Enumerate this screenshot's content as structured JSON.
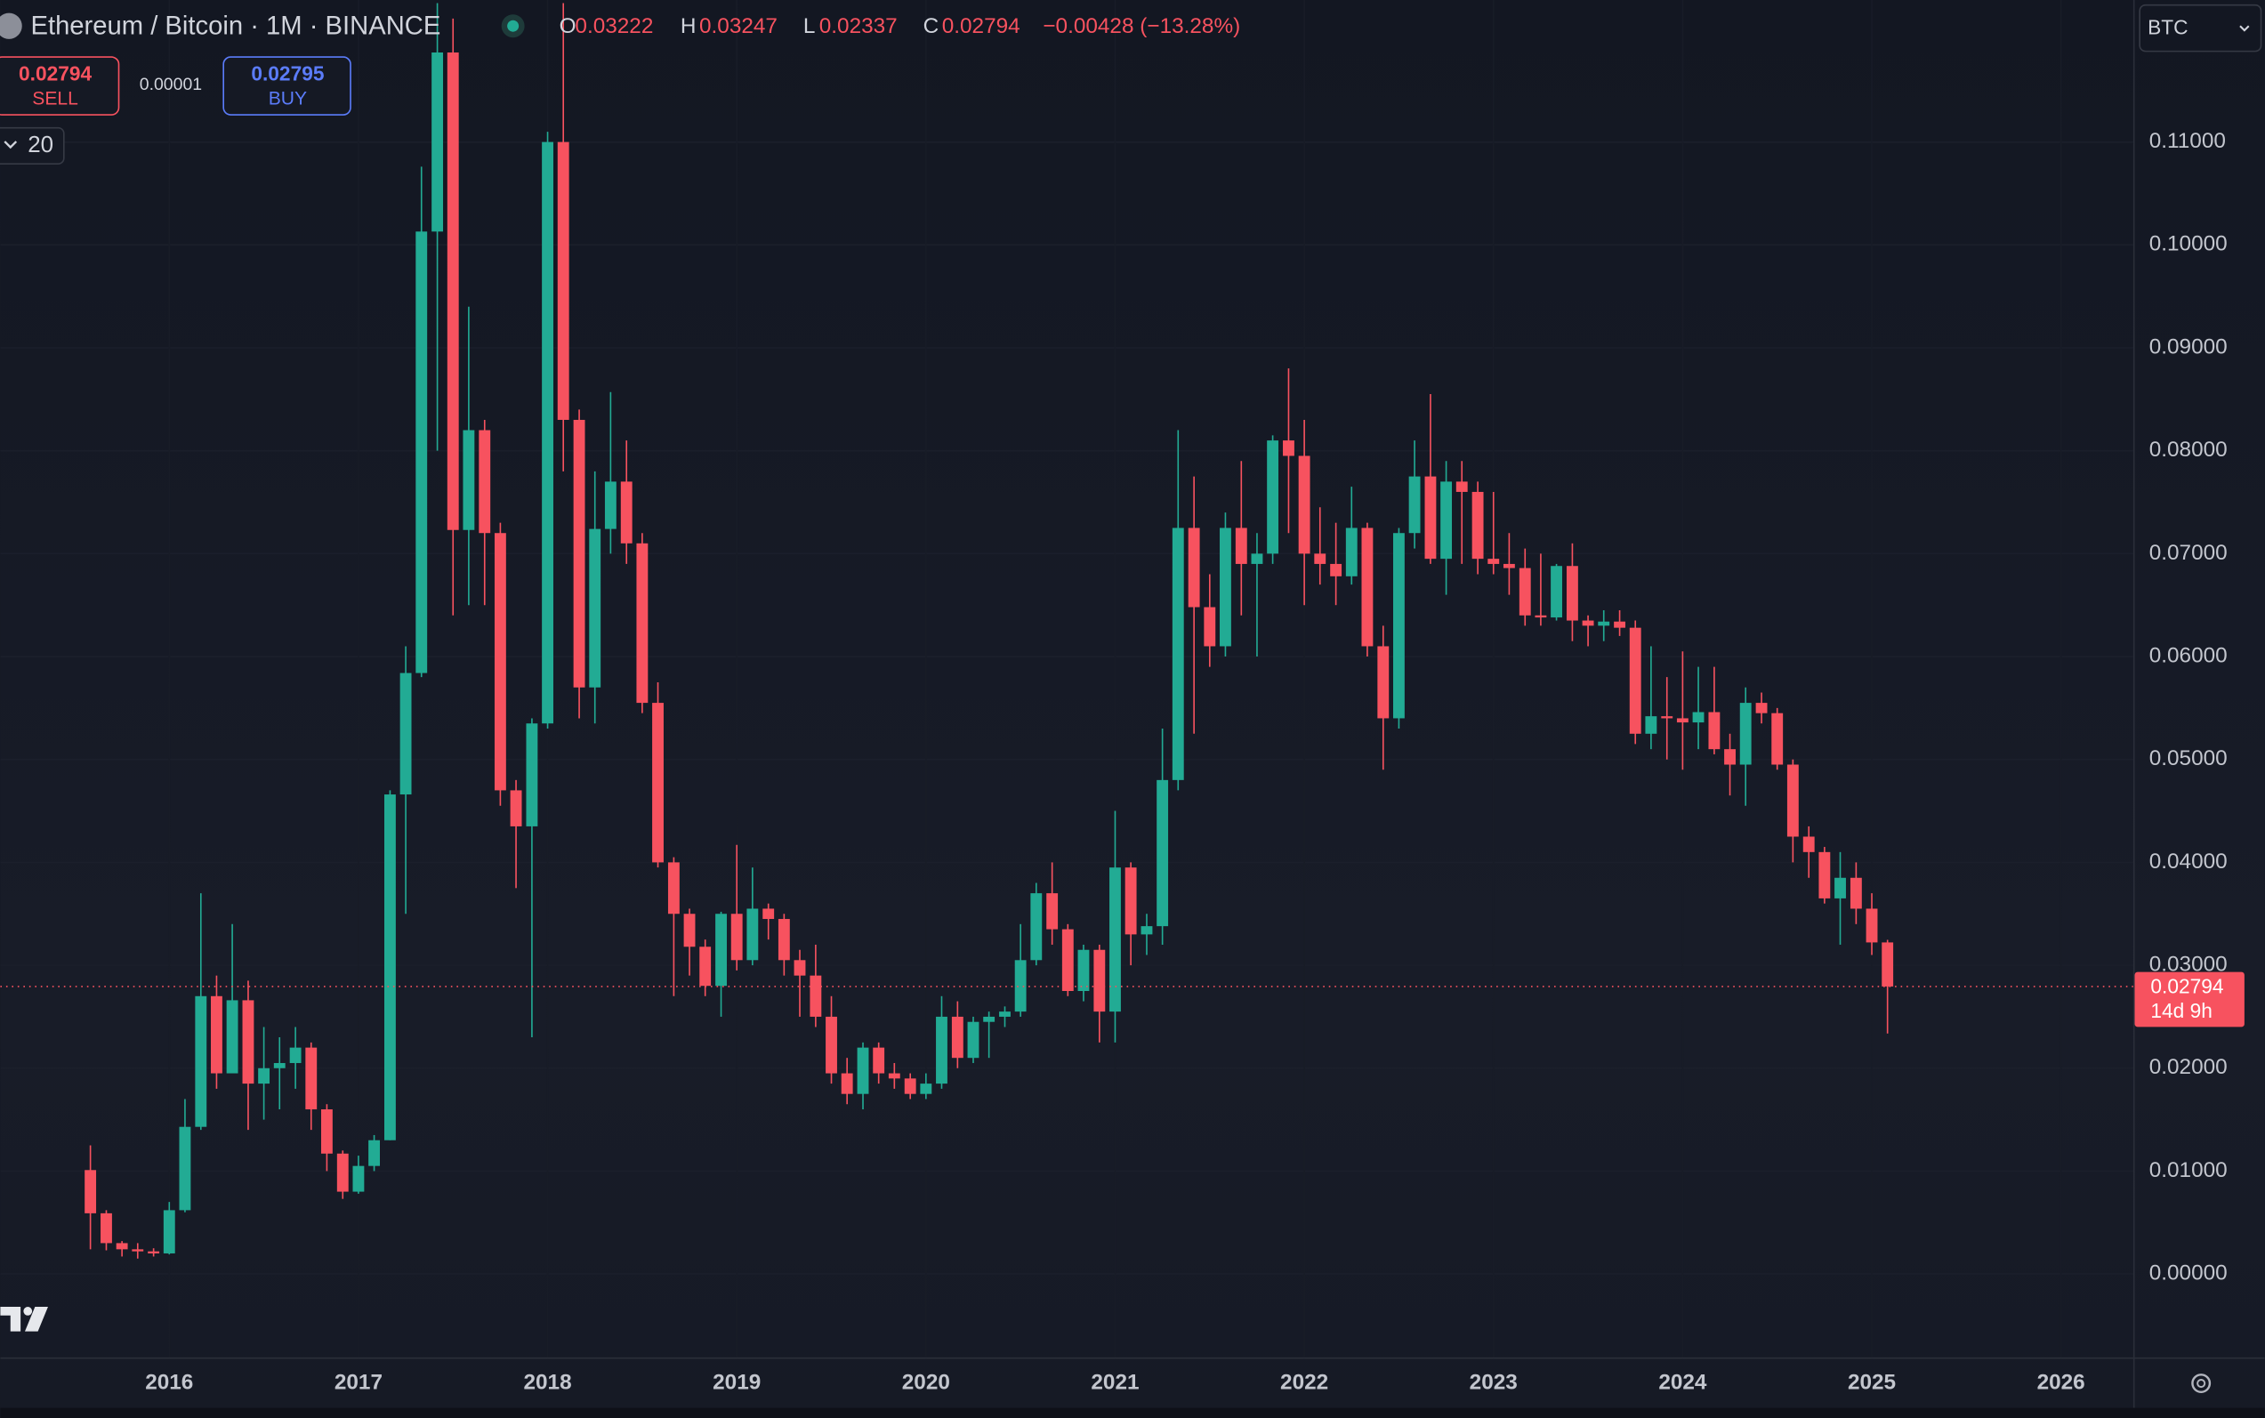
{
  "header": {
    "symbol": "Ethereum / Bitcoin · 1M · BINANCE",
    "ohlc": [
      {
        "label": "O",
        "value": 0.03222
      },
      {
        "label": "H",
        "value": 0.03247
      },
      {
        "label": "L",
        "value": 0.02337
      },
      {
        "label": "C",
        "value": 0.02794
      }
    ],
    "change": "−0.00428 (−13.28%)"
  },
  "trade": {
    "sell_price": 0.02794,
    "sell_label": "SELL",
    "spread": 1e-05,
    "buy_price": 0.02795,
    "buy_label": "BUY"
  },
  "indicators_count": 20,
  "currency": "BTC",
  "price_badge": {
    "price": 0.02794,
    "countdown": "14d 9h"
  },
  "chart_data": {
    "type": "candlestick",
    "up_color": "#22ab94",
    "down_color": "#f7525f",
    "grid": true,
    "xlim": [
      2015.107,
      2026.382
    ],
    "ylim": [
      -0.0081,
      0.1238
    ],
    "xticks": [
      2016,
      2017,
      2018,
      2019,
      2020,
      2021,
      2022,
      2023,
      2024,
      2025,
      2026
    ],
    "yticks": [
      {
        "value": 0,
        "label": "0.00000"
      },
      {
        "value": 0.01,
        "label": "0.01000"
      },
      {
        "value": 0.02,
        "label": "0.02000"
      },
      {
        "value": 0.03,
        "label": "0.03000"
      },
      {
        "value": 0.04,
        "label": "0.04000"
      },
      {
        "value": 0.05,
        "label": "0.05000"
      },
      {
        "value": 0.06,
        "label": "0.06000"
      },
      {
        "value": 0.07,
        "label": "0.07000"
      },
      {
        "value": 0.08,
        "label": "0.08000"
      },
      {
        "value": 0.09,
        "label": "0.09000"
      },
      {
        "value": 0.1,
        "label": "0.10000"
      },
      {
        "value": 0.11,
        "label": "0.11000"
      }
    ],
    "x": [
      2015.583,
      2015.667,
      2015.75,
      2015.833,
      2015.917,
      2016,
      2016.083,
      2016.167,
      2016.25,
      2016.333,
      2016.417,
      2016.5,
      2016.583,
      2016.667,
      2016.75,
      2016.833,
      2016.917,
      2017,
      2017.083,
      2017.167,
      2017.25,
      2017.333,
      2017.417,
      2017.5,
      2017.583,
      2017.667,
      2017.75,
      2017.833,
      2017.917,
      2018,
      2018.083,
      2018.167,
      2018.25,
      2018.333,
      2018.417,
      2018.5,
      2018.583,
      2018.667,
      2018.75,
      2018.833,
      2018.917,
      2019,
      2019.083,
      2019.167,
      2019.25,
      2019.333,
      2019.417,
      2019.5,
      2019.583,
      2019.667,
      2019.75,
      2019.833,
      2019.917,
      2020,
      2020.083,
      2020.167,
      2020.25,
      2020.333,
      2020.417,
      2020.5,
      2020.583,
      2020.667,
      2020.75,
      2020.833,
      2020.917,
      2021,
      2021.083,
      2021.167,
      2021.25,
      2021.333,
      2021.417,
      2021.5,
      2021.583,
      2021.667,
      2021.75,
      2021.833,
      2021.917,
      2022,
      2022.083,
      2022.167,
      2022.25,
      2022.333,
      2022.417,
      2022.5,
      2022.583,
      2022.667,
      2022.75,
      2022.833,
      2022.917,
      2023,
      2023.083,
      2023.167,
      2023.25,
      2023.333,
      2023.417,
      2023.5,
      2023.583,
      2023.667,
      2023.75,
      2023.833,
      2023.917,
      2024,
      2024.083,
      2024.167,
      2024.25,
      2024.333,
      2024.417,
      2024.5,
      2024.583,
      2024.667,
      2024.75,
      2024.833,
      2024.917,
      2025,
      2025.083
    ],
    "open": [
      0.0101,
      0.0059,
      0.003,
      0.0024,
      0.0022,
      0.002,
      0.0062,
      0.0143,
      0.027,
      0.0195,
      0.0266,
      0.0185,
      0.02,
      0.0205,
      0.022,
      0.016,
      0.0117,
      0.008,
      0.0105,
      0.013,
      0.0466,
      0.0584,
      0.1013,
      0.1187,
      0.0723,
      0.082,
      0.072,
      0.047,
      0.0435,
      0.0535,
      0.11,
      0.083,
      0.057,
      0.0724,
      0.077,
      0.071,
      0.0555,
      0.04,
      0.035,
      0.0318,
      0.028,
      0.035,
      0.0305,
      0.0355,
      0.0345,
      0.0305,
      0.029,
      0.025,
      0.0195,
      0.0175,
      0.022,
      0.0195,
      0.019,
      0.0175,
      0.0185,
      0.025,
      0.021,
      0.0245,
      0.025,
      0.0255,
      0.0305,
      0.037,
      0.0335,
      0.0275,
      0.0315,
      0.0255,
      0.0395,
      0.033,
      0.0338,
      0.048,
      0.0725,
      0.0648,
      0.061,
      0.0725,
      0.069,
      0.07,
      0.081,
      0.0795,
      0.07,
      0.069,
      0.0678,
      0.0725,
      0.061,
      0.054,
      0.072,
      0.0775,
      0.0695,
      0.077,
      0.076,
      0.0695,
      0.069,
      0.0686,
      0.064,
      0.0638,
      0.0688,
      0.0635,
      0.063,
      0.0634,
      0.0628,
      0.0525,
      0.0542,
      0.054,
      0.0536,
      0.0546,
      0.051,
      0.0495,
      0.0555,
      0.0545,
      0.0495,
      0.0425,
      0.041,
      0.0365,
      0.0385,
      0.0355,
      0.03222
    ],
    "high": [
      0.0125,
      0.0062,
      0.0032,
      0.003,
      0.0025,
      0.007,
      0.017,
      0.037,
      0.029,
      0.034,
      0.0285,
      0.024,
      0.023,
      0.024,
      0.0225,
      0.0165,
      0.012,
      0.0115,
      0.0135,
      0.047,
      0.061,
      0.1076,
      0.1235,
      0.122,
      0.094,
      0.083,
      0.073,
      0.048,
      0.054,
      0.111,
      0.1235,
      0.084,
      0.078,
      0.0857,
      0.081,
      0.072,
      0.0575,
      0.0405,
      0.0355,
      0.0325,
      0.0352,
      0.0417,
      0.0395,
      0.036,
      0.035,
      0.0315,
      0.032,
      0.027,
      0.021,
      0.0225,
      0.0225,
      0.0205,
      0.0195,
      0.0195,
      0.027,
      0.0265,
      0.025,
      0.0255,
      0.026,
      0.034,
      0.038,
      0.04,
      0.034,
      0.032,
      0.032,
      0.045,
      0.04,
      0.035,
      0.053,
      0.082,
      0.0775,
      0.068,
      0.074,
      0.079,
      0.072,
      0.0815,
      0.088,
      0.083,
      0.0745,
      0.073,
      0.0765,
      0.073,
      0.063,
      0.0725,
      0.081,
      0.0855,
      0.079,
      0.079,
      0.077,
      0.076,
      0.072,
      0.0705,
      0.07,
      0.069,
      0.071,
      0.064,
      0.0645,
      0.0645,
      0.0635,
      0.061,
      0.058,
      0.0605,
      0.059,
      0.059,
      0.0525,
      0.057,
      0.0565,
      0.055,
      0.05,
      0.0435,
      0.0415,
      0.041,
      0.04,
      0.037,
      0.03247
    ],
    "low": [
      0.0024,
      0.0023,
      0.0017,
      0.0015,
      0.0017,
      0.0019,
      0.006,
      0.014,
      0.018,
      0.0195,
      0.014,
      0.015,
      0.016,
      0.018,
      0.014,
      0.01,
      0.0073,
      0.0078,
      0.01,
      0.013,
      0.035,
      0.058,
      0.08,
      0.064,
      0.065,
      0.065,
      0.0455,
      0.0375,
      0.023,
      0.053,
      0.078,
      0.054,
      0.0535,
      0.07,
      0.069,
      0.0545,
      0.0395,
      0.027,
      0.029,
      0.027,
      0.025,
      0.0295,
      0.03,
      0.0325,
      0.029,
      0.025,
      0.024,
      0.0185,
      0.0165,
      0.016,
      0.0185,
      0.018,
      0.017,
      0.017,
      0.018,
      0.02,
      0.0205,
      0.021,
      0.024,
      0.025,
      0.03,
      0.032,
      0.027,
      0.0265,
      0.0225,
      0.0225,
      0.03,
      0.031,
      0.032,
      0.047,
      0.0525,
      0.059,
      0.06,
      0.064,
      0.06,
      0.069,
      0.072,
      0.065,
      0.067,
      0.065,
      0.067,
      0.06,
      0.049,
      0.053,
      0.0705,
      0.069,
      0.066,
      0.069,
      0.068,
      0.068,
      0.066,
      0.063,
      0.063,
      0.0635,
      0.0615,
      0.061,
      0.0615,
      0.062,
      0.0515,
      0.051,
      0.05,
      0.049,
      0.051,
      0.0505,
      0.0465,
      0.0455,
      0.0535,
      0.049,
      0.04,
      0.0385,
      0.036,
      0.032,
      0.034,
      0.031,
      0.02337
    ],
    "close": [
      0.0059,
      0.003,
      0.0024,
      0.0022,
      0.002,
      0.0062,
      0.0143,
      0.027,
      0.0195,
      0.0266,
      0.0185,
      0.02,
      0.0205,
      0.022,
      0.016,
      0.0117,
      0.008,
      0.0105,
      0.013,
      0.0466,
      0.0584,
      0.1013,
      0.1187,
      0.0723,
      0.082,
      0.072,
      0.047,
      0.0435,
      0.0535,
      0.11,
      0.083,
      0.057,
      0.0724,
      0.077,
      0.071,
      0.0555,
      0.04,
      0.035,
      0.0318,
      0.028,
      0.035,
      0.0305,
      0.0355,
      0.0345,
      0.0305,
      0.029,
      0.025,
      0.0195,
      0.0175,
      0.022,
      0.0195,
      0.019,
      0.0175,
      0.0185,
      0.025,
      0.021,
      0.0245,
      0.025,
      0.0255,
      0.0305,
      0.037,
      0.0335,
      0.0275,
      0.0315,
      0.0255,
      0.0395,
      0.033,
      0.0338,
      0.048,
      0.0725,
      0.0648,
      0.061,
      0.0725,
      0.069,
      0.07,
      0.081,
      0.0795,
      0.07,
      0.069,
      0.0678,
      0.0725,
      0.061,
      0.054,
      0.072,
      0.0775,
      0.0695,
      0.077,
      0.076,
      0.0695,
      0.069,
      0.0686,
      0.064,
      0.0638,
      0.0688,
      0.0635,
      0.063,
      0.0634,
      0.0628,
      0.0525,
      0.0542,
      0.054,
      0.0536,
      0.0546,
      0.051,
      0.0495,
      0.0555,
      0.0545,
      0.0495,
      0.0425,
      0.041,
      0.0365,
      0.0385,
      0.0355,
      0.03222,
      0.02794
    ]
  }
}
